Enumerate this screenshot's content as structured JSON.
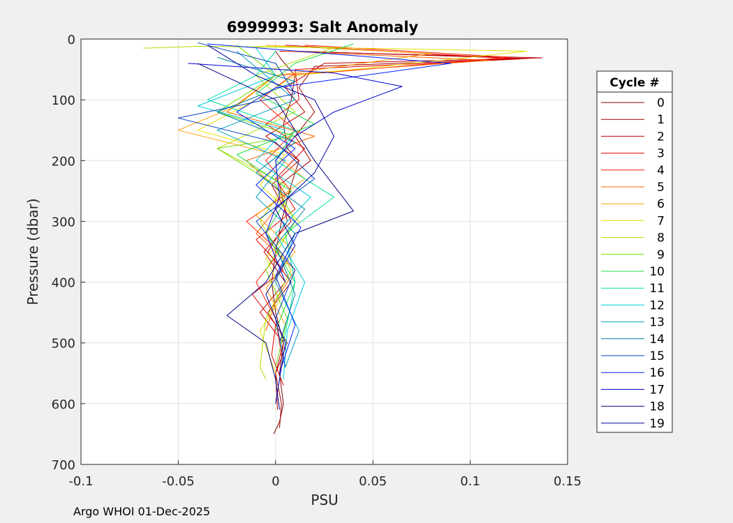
{
  "footer_note": "Argo WHOI 01-Dec-2025",
  "chart_data": {
    "type": "line",
    "title": "6999993: Salt Anomaly",
    "xlabel": "PSU",
    "ylabel": "Pressure (dbar)",
    "xlim": [
      -0.1,
      0.15
    ],
    "ylim": [
      0,
      700
    ],
    "y_reversed": true,
    "grid": true,
    "xticks": [
      -0.1,
      -0.05,
      0,
      0.05,
      0.1,
      0.15
    ],
    "xtick_labels": [
      "-0.1",
      "-0.05",
      "0",
      "0.05",
      "0.1",
      "0.15"
    ],
    "yticks": [
      0,
      100,
      200,
      300,
      400,
      500,
      600,
      700
    ],
    "ytick_labels": [
      "0",
      "100",
      "200",
      "300",
      "400",
      "500",
      "600",
      "700"
    ],
    "legend": {
      "title": "Cycle #",
      "placement": "outside-right"
    },
    "series": [
      {
        "name": "0",
        "color": "#800000",
        "x": [
          0.0,
          0.003,
          0.01,
          0.008,
          0.004,
          0.006,
          0.012,
          0.008,
          0.003,
          0.0,
          -0.002,
          0.0,
          0.004,
          0.002,
          0.004,
          0.002,
          -0.001
        ],
        "y": [
          20,
          34,
          60,
          100,
          140,
          180,
          200,
          240,
          300,
          350,
          400,
          450,
          500,
          550,
          600,
          630,
          650
        ]
      },
      {
        "name": "1",
        "color": "#a00000",
        "x": [
          0.01,
          0.13,
          0.02,
          0.012,
          0.02,
          0.01,
          0.018,
          0.002,
          0.006,
          -0.004,
          0.008,
          -0.004,
          0.006,
          0.0,
          0.003,
          0.002
        ],
        "y": [
          20,
          32,
          45,
          80,
          120,
          160,
          200,
          240,
          300,
          350,
          400,
          450,
          500,
          550,
          600,
          640
        ]
      },
      {
        "name": "2",
        "color": "#c00000",
        "x": [
          0.002,
          0.137,
          0.025,
          0.005,
          0.015,
          -0.005,
          0.012,
          -0.002,
          0.008,
          -0.006,
          0.005,
          -0.008,
          0.004,
          0.0,
          0.001
        ],
        "y": [
          20,
          31,
          40,
          80,
          120,
          160,
          200,
          240,
          300,
          350,
          400,
          450,
          500,
          550,
          610
        ]
      },
      {
        "name": "3",
        "color": "#e00000",
        "x": [
          0.005,
          0.125,
          0.01,
          0.012,
          -0.005,
          0.015,
          0.0,
          0.01,
          -0.01,
          0.004,
          -0.012,
          0.0,
          -0.002,
          0.004
        ],
        "y": [
          10,
          33,
          50,
          100,
          140,
          180,
          230,
          280,
          330,
          380,
          420,
          470,
          520,
          570
        ]
      },
      {
        "name": "4",
        "color": "#ff2000",
        "x": [
          0.015,
          0.12,
          0.008,
          -0.008,
          0.01,
          -0.005,
          0.008,
          -0.015,
          0.002,
          -0.01,
          0.0,
          0.003
        ],
        "y": [
          10,
          30,
          60,
          100,
          150,
          200,
          250,
          300,
          350,
          400,
          460,
          520
        ]
      },
      {
        "name": "5",
        "color": "#ff6000",
        "x": [
          0.005,
          0.11,
          0.0,
          -0.025,
          0.02,
          -0.015,
          0.005,
          -0.01,
          0.01,
          0.0,
          -0.005
        ],
        "y": [
          20,
          35,
          60,
          120,
          160,
          200,
          260,
          320,
          380,
          430,
          480
        ]
      },
      {
        "name": "6",
        "color": "#ffa000",
        "x": [
          -0.005,
          0.08,
          0.0,
          -0.02,
          -0.05,
          0.0,
          0.015,
          -0.01,
          0.01,
          -0.005,
          0.005
        ],
        "y": [
          10,
          24,
          60,
          110,
          150,
          190,
          230,
          290,
          350,
          410,
          470
        ]
      },
      {
        "name": "7",
        "color": "#e8e000",
        "x": [
          -0.01,
          0.129,
          0.01,
          -0.01,
          -0.04,
          0.005,
          -0.008,
          0.012,
          -0.005,
          0.004,
          -0.008,
          0.0
        ],
        "y": [
          12,
          20,
          60,
          100,
          150,
          190,
          240,
          300,
          360,
          420,
          480,
          550
        ]
      },
      {
        "name": "8",
        "color": "#b0e000",
        "x": [
          -0.068,
          -0.04,
          0.03,
          -0.01,
          0.01,
          -0.03,
          0.005,
          -0.008,
          0.008,
          -0.005,
          -0.008,
          -0.005
        ],
        "y": [
          15,
          12,
          14,
          60,
          120,
          180,
          240,
          300,
          380,
          460,
          540,
          560
        ]
      },
      {
        "name": "9",
        "color": "#70e000",
        "x": [
          -0.02,
          0.0,
          -0.03,
          0.01,
          -0.03,
          0.0,
          0.01,
          -0.005,
          0.006,
          0.0
        ],
        "y": [
          10,
          60,
          120,
          160,
          180,
          240,
          300,
          380,
          460,
          540
        ]
      },
      {
        "name": "10",
        "color": "#20e040",
        "x": [
          0.04,
          0.01,
          -0.01,
          0.02,
          -0.02,
          0.008,
          -0.005,
          0.01,
          0.0
        ],
        "y": [
          8,
          40,
          90,
          140,
          190,
          250,
          320,
          400,
          480
        ]
      },
      {
        "name": "11",
        "color": "#00e0a0",
        "x": [
          0.0,
          -0.01,
          -0.035,
          0.01,
          0.0,
          0.03,
          0.005,
          0.01,
          0.004
        ],
        "y": [
          20,
          60,
          100,
          150,
          200,
          260,
          320,
          400,
          500
        ]
      },
      {
        "name": "12",
        "color": "#00c8e0",
        "x": [
          -0.01,
          0.0,
          -0.04,
          0.005,
          -0.01,
          0.018,
          0.0,
          0.015,
          0.006,
          0.004
        ],
        "y": [
          15,
          60,
          110,
          150,
          200,
          260,
          320,
          400,
          480,
          560
        ]
      },
      {
        "name": "13",
        "color": "#00a0c0",
        "x": [
          -0.02,
          -0.005,
          0.01,
          -0.03,
          0.005,
          -0.01,
          0.01,
          0.0,
          0.012,
          0.005
        ],
        "y": [
          20,
          60,
          100,
          150,
          200,
          260,
          320,
          400,
          480,
          540
        ]
      },
      {
        "name": "14",
        "color": "#0080a0",
        "x": [
          -0.03,
          0.01,
          -0.03,
          0.01,
          -0.01,
          0.015,
          0.0,
          0.01,
          0.002
        ],
        "y": [
          30,
          70,
          120,
          170,
          220,
          280,
          340,
          420,
          500
        ]
      },
      {
        "name": "15",
        "color": "#0040c0",
        "x": [
          -0.04,
          0.0,
          0.01,
          -0.05,
          0.0,
          0.02,
          -0.01,
          0.01,
          0.0,
          0.005
        ],
        "y": [
          6,
          40,
          90,
          130,
          170,
          230,
          300,
          380,
          460,
          540
        ]
      },
      {
        "name": "16",
        "color": "#0020ff",
        "x": [
          -0.035,
          0.09,
          0.0,
          -0.02,
          0.01,
          -0.01,
          0.013,
          0.0,
          0.01,
          0.002
        ],
        "y": [
          8,
          40,
          80,
          120,
          180,
          240,
          310,
          390,
          470,
          550
        ]
      },
      {
        "name": "17",
        "color": "#0000d0",
        "x": [
          -0.045,
          0.03,
          0.065,
          0.03,
          0.01,
          0.0,
          0.002,
          -0.005,
          0.005
        ],
        "y": [
          40,
          56,
          78,
          120,
          160,
          200,
          260,
          320,
          400
        ]
      },
      {
        "name": "18",
        "color": "#000080",
        "x": [
          -0.04,
          0.0,
          0.02,
          0.04,
          0.01,
          -0.005,
          -0.025,
          -0.005,
          0.0,
          0.002
        ],
        "y": [
          40,
          100,
          200,
          283,
          320,
          400,
          455,
          500,
          560,
          610
        ]
      },
      {
        "name": "19",
        "color": "#0000a0",
        "x": [
          -0.035,
          -0.01,
          0.02,
          0.03,
          0.02,
          0.0,
          0.01,
          -0.005,
          0.005,
          0.0
        ],
        "y": [
          10,
          60,
          100,
          160,
          220,
          280,
          340,
          420,
          500,
          600
        ]
      }
    ]
  }
}
